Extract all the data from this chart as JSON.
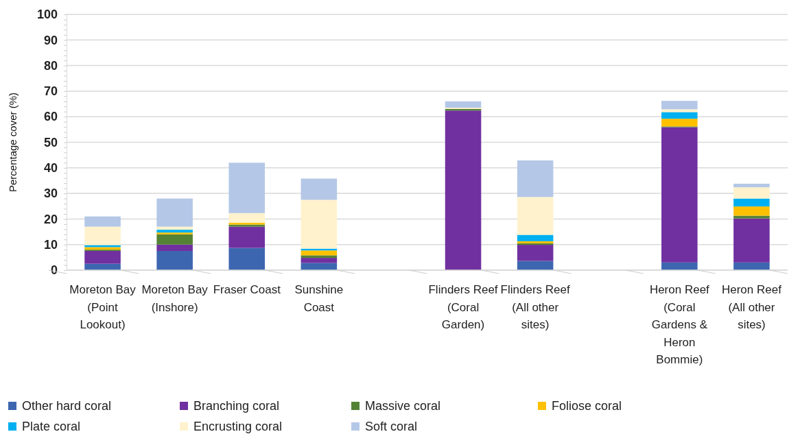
{
  "chart_data": {
    "type": "bar",
    "stacked": true,
    "ylabel": "Percentage cover (%)",
    "categories": [
      "Moreton Bay (Point Lookout)",
      "Moreton Bay (Inshore)",
      "Fraser Coast",
      "Sunshine Coast",
      null,
      "Flinders Reef (Coral Garden)",
      "Flinders Reef (All other sites)",
      null,
      "Heron Reef (Coral Gardens & Heron Bommie)",
      "Heron Reef (All other sites)"
    ],
    "series": [
      {
        "name": "Other hard coral",
        "color": "#3d66b0",
        "values": [
          2.5,
          7.5,
          8.7,
          2.8,
          null,
          0,
          3.6,
          null,
          3.0,
          3.0
        ]
      },
      {
        "name": "Branching coral",
        "color": "#7030a0",
        "values": [
          5,
          2.5,
          8.3,
          2,
          null,
          62.4,
          6.3,
          null,
          52.9,
          17.2
        ]
      },
      {
        "name": "Massive coral",
        "color": "#548235",
        "values": [
          0.5,
          4,
          0.8,
          1,
          null,
          0.6,
          0.6,
          null,
          0.3,
          1.1
        ]
      },
      {
        "name": "Foliose coral",
        "color": "#ffc000",
        "values": [
          1,
          0.7,
          0.7,
          1.9,
          null,
          0,
          0.8,
          null,
          3,
          3.6
        ]
      },
      {
        "name": "Plate coral",
        "color": "#00b0f0",
        "values": [
          0.8,
          1.1,
          0,
          0.7,
          null,
          0,
          2.5,
          null,
          2.6,
          3.1
        ]
      },
      {
        "name": "Encrusting coral",
        "color": "#fff2cc",
        "values": [
          7.2,
          1.2,
          3.8,
          19.1,
          null,
          0.5,
          14.8,
          null,
          1.1,
          4.4
        ]
      },
      {
        "name": "Soft coral",
        "color": "#b4c7e7",
        "values": [
          4,
          11,
          19.7,
          8.3,
          null,
          2.5,
          14.3,
          null,
          3.3,
          1.4
        ]
      }
    ],
    "ylim": [
      0,
      100
    ],
    "yticks": [
      0,
      {
        "value": 2,
        "label": null
      },
      {
        "value": 4,
        "label": null
      },
      {
        "value": 6,
        "label": null
      },
      {
        "value": 8,
        "label": null
      },
      10,
      {
        "value": 12,
        "label": null
      },
      {
        "value": 14,
        "label": null
      },
      {
        "value": 16,
        "label": null
      },
      {
        "value": 18,
        "label": null
      },
      20,
      {
        "value": 22,
        "label": null
      },
      {
        "value": 24,
        "label": null
      },
      {
        "value": 26,
        "label": null
      },
      {
        "value": 28,
        "label": null
      },
      30,
      {
        "value": 32,
        "label": null
      },
      {
        "value": 34,
        "label": null
      },
      {
        "value": 36,
        "label": null
      },
      {
        "value": 38,
        "label": null
      },
      40,
      {
        "value": 42,
        "label": null
      },
      {
        "value": 44,
        "label": null
      },
      {
        "value": 46,
        "label": null
      },
      {
        "value": 48,
        "label": null
      },
      50,
      {
        "value": 52,
        "label": null
      },
      {
        "value": 54,
        "label": null
      },
      {
        "value": 56,
        "label": null
      },
      {
        "value": 58,
        "label": null
      },
      60,
      {
        "value": 62,
        "label": null
      },
      {
        "value": 64,
        "label": null
      },
      {
        "value": 66,
        "label": null
      },
      {
        "value": 68,
        "label": null
      },
      70,
      {
        "value": 72,
        "label": null
      },
      {
        "value": 74,
        "label": null
      },
      {
        "value": 76,
        "label": null
      },
      {
        "value": 78,
        "label": null
      },
      80,
      {
        "value": 82,
        "label": null
      },
      {
        "value": 84,
        "label": null
      },
      {
        "value": 86,
        "label": null
      },
      {
        "value": 88,
        "label": null
      },
      90,
      {
        "value": 92,
        "label": null
      },
      {
        "value": 94,
        "label": null
      },
      {
        "value": 96,
        "label": null
      },
      {
        "value": 98,
        "label": null
      },
      100
    ],
    "grid": "y",
    "legend": "bottom"
  }
}
